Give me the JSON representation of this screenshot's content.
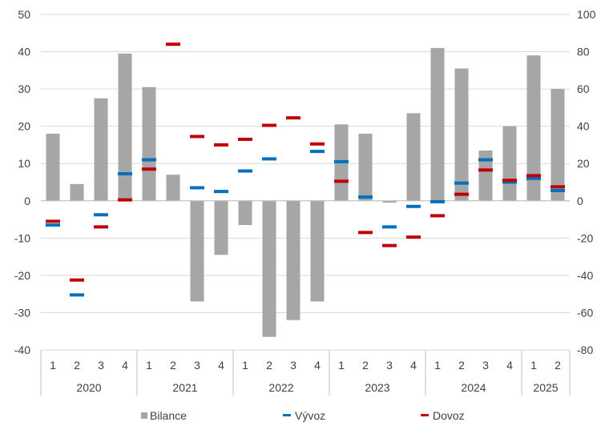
{
  "chart_data": {
    "type": "bar",
    "left_axis": {
      "ticks": [
        50,
        40,
        30,
        20,
        10,
        0,
        -10,
        -20,
        -30,
        -40
      ],
      "ylim": [
        -40,
        50
      ]
    },
    "right_axis": {
      "ticks": [
        100,
        80,
        60,
        40,
        20,
        0,
        -20,
        -40,
        -60,
        -80
      ],
      "ylim": [
        -80,
        100
      ]
    },
    "categories": [
      "1",
      "2",
      "3",
      "4",
      "1",
      "2",
      "3",
      "4",
      "1",
      "2",
      "3",
      "4",
      "1",
      "2",
      "3",
      "4",
      "1",
      "2",
      "3",
      "4",
      "1",
      "2"
    ],
    "groups": [
      {
        "label": "2020",
        "count": 4
      },
      {
        "label": "2021",
        "count": 4
      },
      {
        "label": "2022",
        "count": 4
      },
      {
        "label": "2023",
        "count": 4
      },
      {
        "label": "2024",
        "count": 4
      },
      {
        "label": "2025",
        "count": 2
      }
    ],
    "series": [
      {
        "name": "Bilance",
        "kind": "bar",
        "axis": "left",
        "color": "#a6a6a6",
        "values": [
          18,
          4.5,
          27.5,
          39.5,
          30.5,
          7,
          -27,
          -14.5,
          -6.5,
          -36.5,
          -32,
          -27,
          20.5,
          18,
          -0.5,
          23.5,
          41,
          35.5,
          13.5,
          20,
          39,
          30
        ]
      },
      {
        "name": "Vývoz",
        "kind": "marker",
        "axis": "right",
        "color": "#0070c0",
        "values": [
          -13,
          -50.5,
          -7.5,
          14.5,
          22,
          null,
          7,
          5,
          16,
          22.5,
          null,
          26.5,
          21,
          2,
          -14,
          -3,
          -0.5,
          9.5,
          22,
          10,
          12,
          5.5
        ]
      },
      {
        "name": "Dovoz",
        "kind": "marker",
        "axis": "right",
        "color": "#c00000",
        "values": [
          -11,
          -42.5,
          -14,
          0.5,
          17,
          84,
          34.5,
          30,
          33,
          40.5,
          44.5,
          30.5,
          10.5,
          -17,
          -24,
          -19.5,
          -8,
          3.5,
          16.5,
          11,
          13.5,
          7.5
        ]
      }
    ],
    "legend": {
      "position": "bottom",
      "items": [
        {
          "label": "Bilance",
          "symbol": "square",
          "color": "#a6a6a6"
        },
        {
          "label": "Vývoz",
          "symbol": "dash",
          "color": "#0070c0"
        },
        {
          "label": "Dovoz",
          "symbol": "dash",
          "color": "#c00000"
        }
      ]
    },
    "grid": true
  }
}
